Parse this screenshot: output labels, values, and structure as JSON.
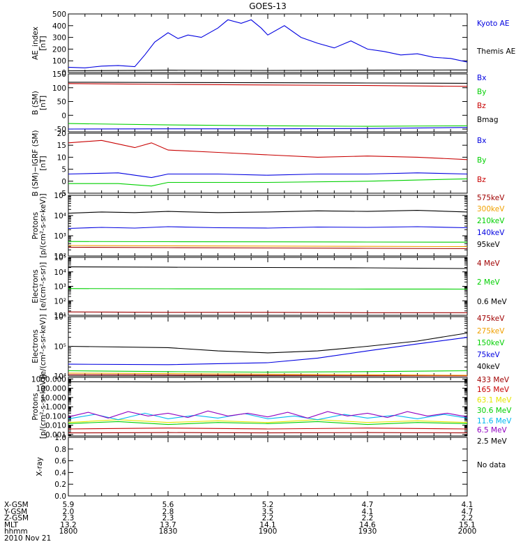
{
  "title": "GOES-13",
  "colors": {
    "black": "#000000",
    "blue": "#0000e0",
    "green": "#00d000",
    "red": "#c80000",
    "darkred": "#a00000",
    "orange": "#f0a000",
    "yellow": "#e6e600",
    "cyan": "#00b8f0",
    "purple": "#9000c0"
  },
  "chart_data": [
    {
      "id": "ae",
      "type": "line",
      "ylabel": [
        "AE_index",
        "[nT]"
      ],
      "ylim": [
        0,
        500
      ],
      "yticks": [
        "0",
        "100",
        "200",
        "300",
        "400",
        "500"
      ],
      "ytick_values": [
        0,
        100,
        200,
        300,
        400,
        500
      ],
      "series": [
        {
          "name": "Kyoto AE",
          "color": "blue",
          "x": [
            1800,
            1805,
            1810,
            1815,
            1820,
            1823,
            1826,
            1830,
            1833,
            1836,
            1840,
            1845,
            1848,
            1852,
            1855,
            1858,
            1900,
            1905,
            1910,
            1915,
            1920,
            1925,
            1930,
            1935,
            1940,
            1945,
            1950,
            1955,
            2000
          ],
          "y": [
            45,
            40,
            55,
            60,
            50,
            150,
            260,
            340,
            290,
            320,
            300,
            380,
            450,
            420,
            450,
            380,
            320,
            400,
            300,
            250,
            210,
            270,
            200,
            180,
            150,
            160,
            130,
            120,
            90
          ]
        },
        {
          "name": "Themis AE",
          "color": "black",
          "x": [
            1800,
            1830,
            1900,
            1930,
            2000
          ],
          "y": [
            15,
            20,
            18,
            20,
            22
          ]
        }
      ]
    },
    {
      "id": "bsm",
      "type": "line",
      "ylabel": [
        "B (SM)",
        "[nT]"
      ],
      "ylim": [
        -60,
        150
      ],
      "yticks": [
        "-50",
        "0",
        "50",
        "100",
        "150"
      ],
      "ytick_values": [
        -50,
        0,
        50,
        100,
        150
      ],
      "series": [
        {
          "name": "Bx",
          "color": "blue",
          "x": [
            1800,
            1830,
            1900,
            1930,
            2000
          ],
          "y": [
            -50,
            -49,
            -49,
            -48,
            -44
          ]
        },
        {
          "name": "By",
          "color": "green",
          "x": [
            1800,
            1830,
            1900,
            1930,
            2000
          ],
          "y": [
            -30,
            -35,
            -38,
            -40,
            -38
          ]
        },
        {
          "name": "Bz",
          "color": "red",
          "x": [
            1800,
            1830,
            1900,
            1930,
            2000
          ],
          "y": [
            115,
            112,
            110,
            108,
            105
          ]
        },
        {
          "name": "Bmag",
          "color": "black",
          "x": [
            1800,
            1830,
            1900,
            1930,
            2000
          ],
          "y": [
            120,
            119,
            118,
            117,
            116
          ]
        }
      ]
    },
    {
      "id": "bigrf",
      "type": "line",
      "ylabel": [
        "B (SM)−IGRF (SM)",
        "[nT]"
      ],
      "ylim": [
        -5,
        20
      ],
      "yticks": [
        "-5",
        "0",
        "5",
        "10",
        "15",
        "20"
      ],
      "ytick_values": [
        -5,
        0,
        5,
        10,
        15,
        20
      ],
      "series": [
        {
          "name": "Bx",
          "color": "blue",
          "x": [
            1800,
            1815,
            1825,
            1830,
            1845,
            1900,
            1915,
            1930,
            1945,
            2000
          ],
          "y": [
            3,
            3.5,
            1.5,
            3,
            3,
            2.5,
            3,
            3,
            3.5,
            3
          ]
        },
        {
          "name": "By",
          "color": "green",
          "x": [
            1800,
            1815,
            1825,
            1830,
            1900,
            1930,
            2000
          ],
          "y": [
            -1,
            -1,
            -2,
            -0.5,
            -0.5,
            0,
            1
          ]
        },
        {
          "name": "Bz",
          "color": "red",
          "x": [
            1800,
            1810,
            1820,
            1825,
            1830,
            1845,
            1900,
            1915,
            1930,
            1945,
            2000
          ],
          "y": [
            16,
            17,
            14,
            16,
            13,
            12,
            11,
            10,
            10.5,
            10,
            9
          ]
        }
      ]
    },
    {
      "id": "protons",
      "type": "line",
      "log": true,
      "ylabel": [
        "Protons",
        "[p/(cm²-s-sr-keV)]"
      ],
      "ylim": [
        100,
        100000
      ],
      "yticks": [
        "10²",
        "10³",
        "10⁴",
        "10⁵"
      ],
      "ytick_values": [
        100,
        1000,
        10000,
        100000
      ],
      "series": [
        {
          "name": "575keV",
          "color": "darkred",
          "x": [
            1800,
            1830,
            1900,
            1930,
            2000
          ],
          "y": [
            270,
            260,
            250,
            240,
            230
          ]
        },
        {
          "name": "300keV",
          "color": "orange",
          "x": [
            1800,
            1830,
            1900,
            1930,
            2000
          ],
          "y": [
            330,
            320,
            310,
            300,
            290
          ]
        },
        {
          "name": "210keV",
          "color": "green",
          "x": [
            1800,
            1830,
            1900,
            1930,
            2000
          ],
          "y": [
            520,
            510,
            500,
            490,
            480
          ]
        },
        {
          "name": "140keV",
          "color": "blue",
          "x": [
            1800,
            1810,
            1820,
            1830,
            1845,
            1900,
            1915,
            1930,
            1945,
            2000
          ],
          "y": [
            2300,
            2600,
            2400,
            2800,
            2500,
            2400,
            2700,
            2600,
            2800,
            2500
          ]
        },
        {
          "name": "95keV",
          "color": "black",
          "x": [
            1800,
            1810,
            1820,
            1830,
            1845,
            1900,
            1915,
            1930,
            1945,
            2000
          ],
          "y": [
            13000,
            15000,
            14000,
            16000,
            14000,
            15000,
            17000,
            16000,
            18000,
            15000
          ]
        }
      ]
    },
    {
      "id": "electrons1",
      "type": "line",
      "log": true,
      "ylabel": [
        "Electrons",
        "[e/(cm²-s-sr)]"
      ],
      "ylim": [
        10,
        100000
      ],
      "yticks": [
        "10¹",
        "10²",
        "10³",
        "10⁴",
        "10⁵"
      ],
      "ytick_values": [
        10,
        100,
        1000,
        10000,
        100000
      ],
      "series": [
        {
          "name": "4 MeV",
          "color": "darkred",
          "x": [
            1800,
            1830,
            1900,
            1930,
            2000
          ],
          "y": [
            17,
            16,
            16,
            15,
            15
          ]
        },
        {
          "name": "2 MeV",
          "color": "green",
          "x": [
            1800,
            1830,
            1900,
            1930,
            2000
          ],
          "y": [
            700,
            680,
            660,
            650,
            640
          ]
        },
        {
          "name": "0.6 MeV",
          "color": "black",
          "x": [
            1800,
            1830,
            1900,
            1930,
            2000
          ],
          "y": [
            22000,
            21000,
            20000,
            19000,
            17000
          ]
        }
      ]
    },
    {
      "id": "electrons2",
      "type": "line",
      "log": true,
      "ylabel": [
        "Electrons",
        "[e/(cm²-s-sr-keV)]"
      ],
      "ylim": [
        10000,
        1000000
      ],
      "yticks": [
        "10⁴",
        "10⁵",
        "10⁶"
      ],
      "ytick_values": [
        10000,
        100000,
        1000000
      ],
      "series": [
        {
          "name": "475keV",
          "color": "darkred",
          "x": [
            1800,
            1830,
            1900,
            1930,
            2000
          ],
          "y": [
            11000,
            10800,
            10500,
            10200,
            10000
          ]
        },
        {
          "name": "275keV",
          "color": "orange",
          "x": [
            1800,
            1830,
            1900,
            1930,
            2000
          ],
          "y": [
            12500,
            12000,
            11500,
            11000,
            10500
          ]
        },
        {
          "name": "150keV",
          "color": "green",
          "x": [
            1800,
            1830,
            1900,
            1930,
            2000
          ],
          "y": [
            15000,
            14000,
            13500,
            14000,
            15000
          ]
        },
        {
          "name": "75keV",
          "color": "blue",
          "x": [
            1800,
            1830,
            1900,
            1915,
            1930,
            1945,
            2000
          ],
          "y": [
            25000,
            24000,
            28000,
            40000,
            70000,
            120000,
            200000
          ]
        },
        {
          "name": "40keV",
          "color": "black",
          "x": [
            1800,
            1830,
            1845,
            1900,
            1915,
            1930,
            1945,
            2000
          ],
          "y": [
            100000,
            90000,
            70000,
            60000,
            70000,
            100000,
            150000,
            280000
          ]
        }
      ]
    },
    {
      "id": "protons_hi",
      "type": "line",
      "log": true,
      "ylabel": [
        "Protons",
        "[p/(cm²-s-sr-keV)]"
      ],
      "ylim": [
        0.0007,
        1500
      ],
      "yticks": [
        "0.001",
        "0.010",
        "0.100",
        "1.000",
        "10.000",
        "100.000",
        "1000.000"
      ],
      "ytick_values": [
        0.001,
        0.01,
        0.1,
        1,
        10,
        100,
        1000
      ],
      "series": [
        {
          "name": "433 MeV",
          "color": "darkred",
          "x": [
            1800,
            1830,
            1900,
            1930,
            2000
          ],
          "y": [
            0.0015,
            0.0016,
            0.0015,
            0.0016,
            0.0015
          ]
        },
        {
          "name": "165 MeV",
          "color": "red",
          "x": [
            1800,
            1830,
            1900,
            1930,
            2000
          ],
          "y": [
            0.004,
            0.005,
            0.004,
            0.005,
            0.004
          ]
        },
        {
          "name": "63.1 MeV",
          "color": "yellow",
          "x": [
            1800,
            1815,
            1830,
            1845,
            1900,
            1915,
            1930,
            1945,
            2000
          ],
          "y": [
            0.02,
            0.04,
            0.02,
            0.03,
            0.02,
            0.04,
            0.02,
            0.03,
            0.02
          ]
        },
        {
          "name": "30.6 MeV",
          "color": "green",
          "x": [
            1800,
            1815,
            1830,
            1845,
            1900,
            1915,
            1930,
            1945,
            2000
          ],
          "y": [
            0.015,
            0.025,
            0.012,
            0.02,
            0.015,
            0.025,
            0.012,
            0.02,
            0.015
          ]
        },
        {
          "name": "11.6 MeV",
          "color": "cyan",
          "x": [
            1800,
            1808,
            1815,
            1823,
            1830,
            1838,
            1845,
            1853,
            1900,
            1908,
            1915,
            1923,
            1930,
            1938,
            1945,
            1953,
            2000
          ],
          "y": [
            0.05,
            0.15,
            0.04,
            0.2,
            0.05,
            0.12,
            0.06,
            0.18,
            0.05,
            0.1,
            0.04,
            0.15,
            0.06,
            0.12,
            0.05,
            0.15,
            0.06
          ]
        },
        {
          "name": "6.5 MeV",
          "color": "purple",
          "x": [
            1800,
            1806,
            1812,
            1818,
            1824,
            1830,
            1836,
            1842,
            1848,
            1854,
            1900,
            1906,
            1912,
            1918,
            1924,
            1930,
            1936,
            1942,
            1948,
            1954,
            2000
          ],
          "y": [
            0.08,
            0.25,
            0.06,
            0.3,
            0.1,
            0.2,
            0.07,
            0.35,
            0.1,
            0.2,
            0.08,
            0.25,
            0.06,
            0.3,
            0.1,
            0.2,
            0.07,
            0.3,
            0.1,
            0.2,
            0.08
          ]
        },
        {
          "name": "2.5 MeV",
          "color": "black",
          "x": [
            1800,
            1830,
            1900,
            1930,
            2000
          ],
          "y": [
            500,
            480,
            520,
            490,
            500
          ]
        }
      ]
    },
    {
      "id": "xray",
      "type": "line",
      "ylabel": [
        "X-ray"
      ],
      "ylim": [
        0,
        1
      ],
      "yticks": [
        "0.0",
        "0.2",
        "0.4",
        "0.6",
        "0.8",
        "1.0"
      ],
      "ytick_values": [
        0,
        0.2,
        0.4,
        0.6,
        0.8,
        1
      ],
      "series": [],
      "annotation": "No data"
    }
  ],
  "xaxis": {
    "tick_times": [
      1800,
      1830,
      1900,
      1930,
      2000
    ],
    "rows": [
      {
        "label": "X-GSM",
        "values": [
          "5.9",
          "5.6",
          "5.2",
          "4.7",
          "4.1"
        ]
      },
      {
        "label": "Y-GSM",
        "values": [
          "2.0",
          "2.8",
          "3.5",
          "4.1",
          "4.7"
        ]
      },
      {
        "label": "Z-GSM",
        "values": [
          "2.3",
          "2.3",
          "2.2",
          "2.2",
          "2.2"
        ]
      },
      {
        "label": "MLT",
        "values": [
          "13.2",
          "13.7",
          "14.1",
          "14.6",
          "15.1"
        ]
      },
      {
        "label": "hhmm",
        "values": [
          "1800",
          "1830",
          "1900",
          "1930",
          "2000"
        ]
      }
    ],
    "date": "2010 Nov 21"
  }
}
